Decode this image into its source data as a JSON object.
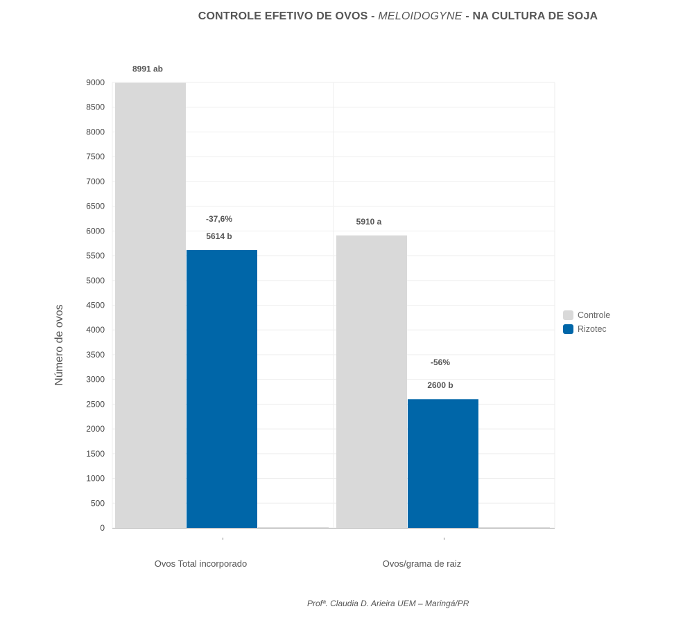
{
  "title": {
    "part1": "CONTROLE EFETIVO DE OVOS - ",
    "part2": "MELOIDOGYNE",
    "part3": " - NA CULTURA DE SOJA"
  },
  "footer": "Profª. Claudia D. Arieira UEM – Maringá/PR",
  "colors": {
    "Controle": "#d9d9d9",
    "Rizotec": "#0066a8",
    "grid": "#eeeeee",
    "axis": "#bbbbbb",
    "text": "#555555"
  },
  "chart_data": {
    "type": "bar",
    "title": "CONTROLE EFETIVO DE OVOS - MELOIDOGYNE - NA CULTURA DE SOJA",
    "categories": [
      "Ovos Total incorporado",
      "Ovos/grama de raiz"
    ],
    "series": [
      {
        "name": "Controle",
        "values": [
          8991,
          5910
        ],
        "labels": [
          "8991 ab",
          "5910 a"
        ]
      },
      {
        "name": "Rizotec",
        "values": [
          5614,
          2600
        ],
        "labels": [
          "5614 b",
          "2600 b"
        ]
      }
    ],
    "reductions": [
      "-37,6%",
      "-56%"
    ],
    "ylabel": "Número de ovos",
    "xlabel": "",
    "ylim": [
      0,
      9000
    ],
    "yticks": [
      0,
      500,
      1000,
      1500,
      2000,
      2500,
      3000,
      3500,
      4000,
      4500,
      5000,
      5500,
      6000,
      6500,
      7000,
      7500,
      8000,
      8500,
      9000
    ],
    "grid": true,
    "legend": "right"
  }
}
